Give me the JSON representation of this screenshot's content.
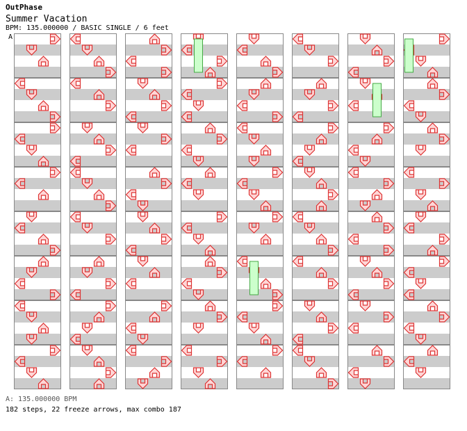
{
  "header": {
    "site_name": "OutPhase",
    "song_title": "Summer Vacation",
    "chart_info": "BPM: 135.000000 / BASIC SINGLE / 6 feet"
  },
  "bpm_marker": "A",
  "footer": {
    "bpm_change": "A: 135.000000 BPM",
    "stats": "182 steps, 22 freeze arrows, max combo 187"
  },
  "colors": {
    "stripe_light": "#ffffff",
    "stripe_dark": "#cccccc",
    "border": "#888888",
    "arrow_fill": "#ffd6d6",
    "arrow_stroke": "#dd3333",
    "freeze_fill": "#ccffcc",
    "freeze_stroke": "#44aa44",
    "up_blue": "#99ccff",
    "up_pink": "#ffccff"
  },
  "chart_data": {
    "type": "step-chart",
    "columns": 8,
    "measures_per_column": 8,
    "rows_per_measure": 4,
    "lanes": [
      "left",
      "down",
      "up",
      "right"
    ],
    "notes": [
      {
        "m": 0,
        "b": 0,
        "l": "R"
      },
      {
        "m": 0,
        "b": 1,
        "l": "D"
      },
      {
        "m": 0,
        "b": 2,
        "l": "U"
      },
      {
        "m": 1,
        "b": 0,
        "l": "L"
      },
      {
        "m": 1,
        "b": 1,
        "l": "D"
      },
      {
        "m": 1,
        "b": 2,
        "l": "U"
      },
      {
        "m": 1,
        "b": 3,
        "l": "R"
      },
      {
        "m": 2,
        "b": 0,
        "l": "R"
      },
      {
        "m": 2,
        "b": 1,
        "l": "L"
      },
      {
        "m": 2,
        "b": 2,
        "l": "D"
      },
      {
        "m": 2,
        "b": 3,
        "l": "U"
      },
      {
        "m": 3,
        "b": 0,
        "l": "R"
      },
      {
        "m": 3,
        "b": 1,
        "l": "L"
      },
      {
        "m": 3,
        "b": 2,
        "l": "U"
      },
      {
        "m": 4,
        "b": 0,
        "l": "D"
      },
      {
        "m": 4,
        "b": 1,
        "l": "L"
      },
      {
        "m": 4,
        "b": 2,
        "l": "U"
      },
      {
        "m": 4,
        "b": 3,
        "l": "R"
      },
      {
        "m": 5,
        "b": 0,
        "l": "U"
      },
      {
        "m": 5,
        "b": 1,
        "l": "D"
      },
      {
        "m": 5,
        "b": 2,
        "l": "L"
      },
      {
        "m": 5,
        "b": 3,
        "l": "R"
      },
      {
        "m": 6,
        "b": 0,
        "l": "L"
      },
      {
        "m": 6,
        "b": 1,
        "l": "D"
      },
      {
        "m": 6,
        "b": 2,
        "l": "U"
      },
      {
        "m": 6,
        "b": 3,
        "l": "D"
      },
      {
        "m": 7,
        "b": 0,
        "l": "R"
      },
      {
        "m": 7,
        "b": 1,
        "l": "L"
      },
      {
        "m": 7,
        "b": 2,
        "l": "D"
      },
      {
        "m": 7,
        "b": 3,
        "l": "U"
      }
    ]
  }
}
